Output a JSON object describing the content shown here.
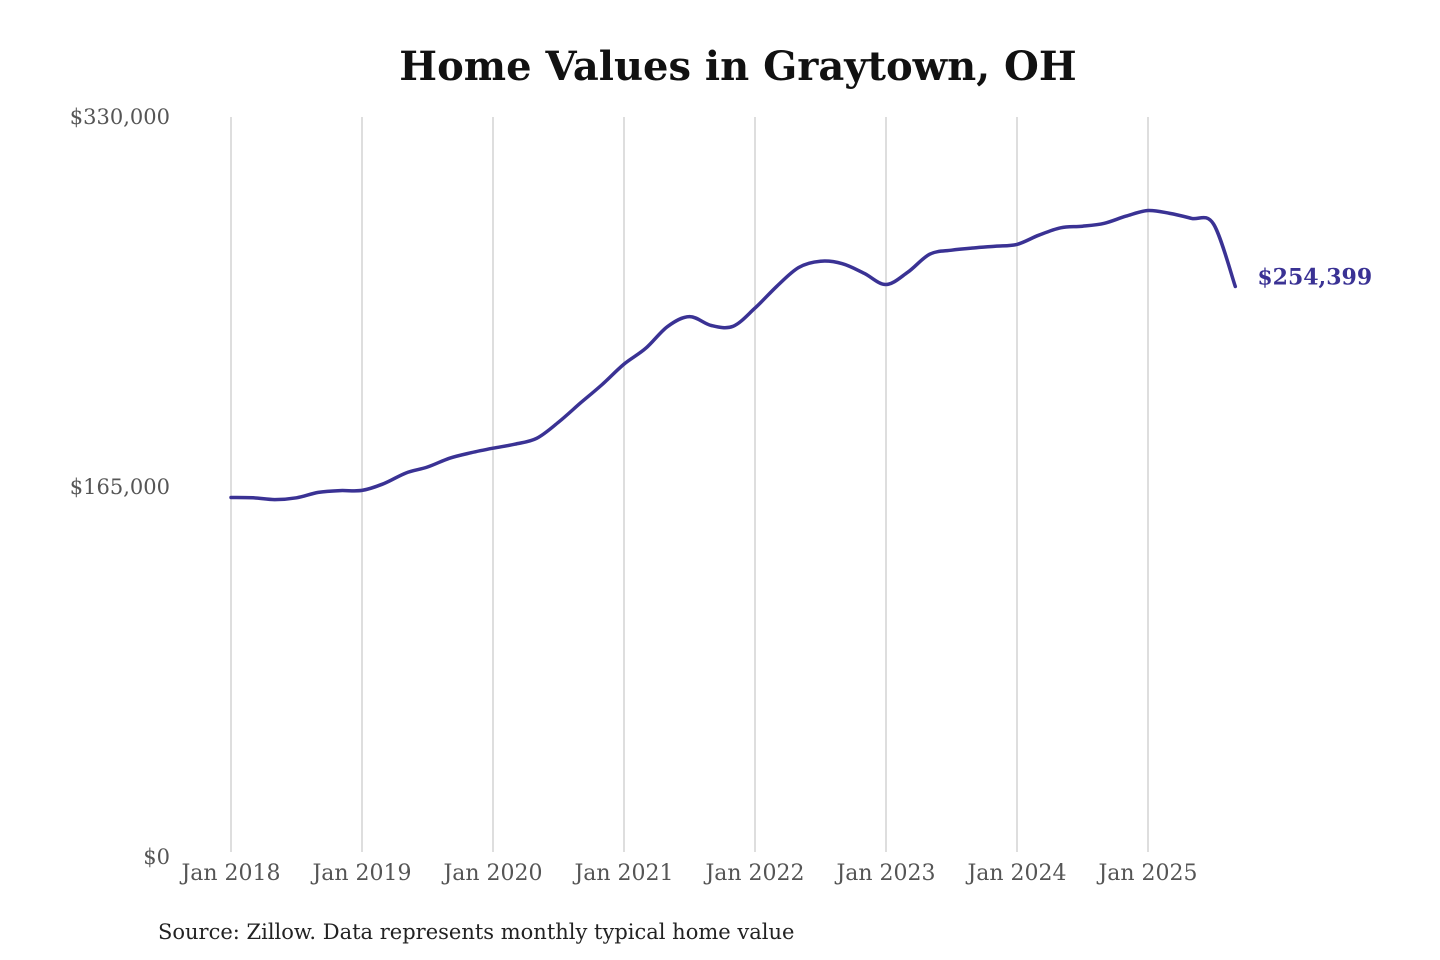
{
  "colors": {
    "series": "#3a3294",
    "grid": "#c8c8c8",
    "axis_text": "#555555"
  },
  "chart_data": {
    "type": "line",
    "title": "Home Values in Graytown, OH",
    "xlabel": "",
    "ylabel": "",
    "ylim": [
      0,
      330000
    ],
    "y_ticks": [
      {
        "value": 0,
        "label": "$0"
      },
      {
        "value": 165000,
        "label": "$165,000"
      },
      {
        "value": 330000,
        "label": "$330,000"
      }
    ],
    "x_ticks": [
      {
        "value": "2018-01",
        "label": "Jan 2018"
      },
      {
        "value": "2019-01",
        "label": "Jan 2019"
      },
      {
        "value": "2020-01",
        "label": "Jan 2020"
      },
      {
        "value": "2021-01",
        "label": "Jan 2021"
      },
      {
        "value": "2022-01",
        "label": "Jan 2022"
      },
      {
        "value": "2023-01",
        "label": "Jan 2023"
      },
      {
        "value": "2024-01",
        "label": "Jan 2024"
      },
      {
        "value": "2025-01",
        "label": "Jan 2025"
      }
    ],
    "grid": "vertical",
    "legend": "none",
    "end_label": "$254,399",
    "series": [
      {
        "x": [
          "2018-01",
          "2018-03",
          "2018-05",
          "2018-07",
          "2018-09",
          "2018-11",
          "2019-01",
          "2019-03",
          "2019-05",
          "2019-07",
          "2019-09",
          "2019-11",
          "2020-01",
          "2020-03",
          "2020-05",
          "2020-07",
          "2020-09",
          "2020-11",
          "2021-01",
          "2021-03",
          "2021-05",
          "2021-07",
          "2021-09",
          "2021-11",
          "2022-01",
          "2022-03",
          "2022-05",
          "2022-07",
          "2022-09",
          "2022-11",
          "2023-01",
          "2023-03",
          "2023-05",
          "2023-07",
          "2023-09",
          "2023-11",
          "2024-01",
          "2024-03",
          "2024-05",
          "2024-07",
          "2024-09",
          "2024-11",
          "2025-01",
          "2025-03",
          "2025-05",
          "2025-07",
          "2025-09"
        ],
        "values": [
          160300,
          160200,
          159400,
          160200,
          162600,
          163400,
          163500,
          166500,
          171200,
          173900,
          177800,
          180300,
          182300,
          184100,
          186700,
          193900,
          202400,
          210700,
          219800,
          226900,
          236600,
          241000,
          237000,
          236700,
          244800,
          254500,
          262900,
          265700,
          264600,
          260300,
          255300,
          260800,
          268800,
          270600,
          271600,
          272400,
          273200,
          277300,
          280600,
          281300,
          282600,
          285800,
          288300,
          287000,
          284800,
          282300,
          254399
        ]
      }
    ],
    "annotation": "Source: Zillow. Data represents monthly typical home value"
  }
}
